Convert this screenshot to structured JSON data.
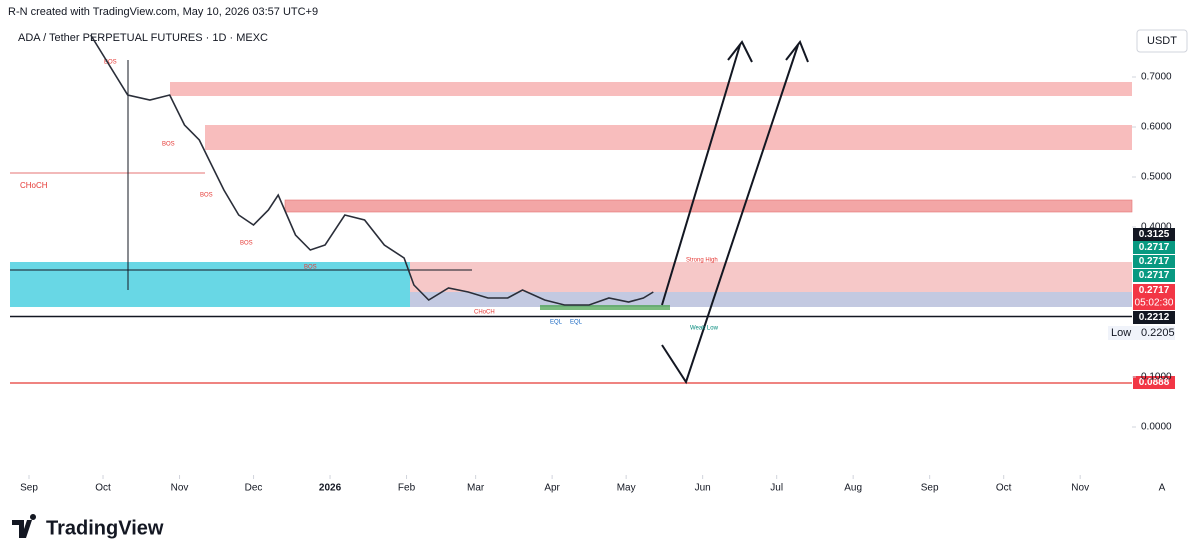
{
  "header": {
    "credit": "R-N created with TradingView.com, May 10, 2026 03:57 UTC+9",
    "brand": "TradingView"
  },
  "chart_data": {
    "type": "line",
    "title": "ADA / Tether PERPETUAL FUTURES · 1D · MEXC",
    "y_axis_label": "USDT",
    "scale_mode": "A",
    "color": "#2a2e39",
    "x": [
      25,
      40,
      49,
      57,
      63,
      69,
      73,
      79,
      85,
      91,
      97,
      101,
      108,
      114,
      120,
      128,
      136,
      144,
      152,
      156,
      162,
      170,
      178,
      186,
      194,
      200,
      209,
      217,
      227,
      235,
      243,
      249,
      253
    ],
    "values": [
      0.784,
      0.664,
      0.654,
      0.664,
      0.604,
      0.574,
      0.534,
      0.474,
      0.424,
      0.404,
      0.434,
      0.464,
      0.384,
      0.354,
      0.364,
      0.424,
      0.414,
      0.364,
      0.338,
      0.284,
      0.254,
      0.278,
      0.27,
      0.258,
      0.258,
      0.274,
      0.254,
      0.244,
      0.244,
      0.258,
      0.25,
      0.258,
      0.27
    ],
    "xlim": [
      -7.7,
      447
    ],
    "xticks": [
      {
        "value": 0,
        "label": "Sep"
      },
      {
        "value": 30,
        "label": "Oct"
      },
      {
        "value": 61,
        "label": "Nov"
      },
      {
        "value": 91,
        "label": "Dec"
      },
      {
        "value": 122,
        "label": "2026"
      },
      {
        "value": 153,
        "label": "Feb"
      },
      {
        "value": 181,
        "label": "Mar"
      },
      {
        "value": 212,
        "label": "Apr"
      },
      {
        "value": 242,
        "label": "May"
      },
      {
        "value": 273,
        "label": "Jun"
      },
      {
        "value": 303,
        "label": "Jul"
      },
      {
        "value": 334,
        "label": "Aug"
      },
      {
        "value": 365,
        "label": "Sep"
      },
      {
        "value": 395,
        "label": "Oct"
      },
      {
        "value": 426,
        "label": "Nov"
      }
    ],
    "ylim": [
      -0.096,
      0.794
    ],
    "yticks": [
      {
        "value": 0,
        "label": "0.0000"
      },
      {
        "value": 0.1,
        "label": "0.1000"
      },
      {
        "value": 0.4,
        "label": "0.4000"
      },
      {
        "value": 0.5,
        "label": "0.5000"
      },
      {
        "value": 0.6,
        "label": "0.6000"
      },
      {
        "value": 0.7,
        "label": "0.7000"
      }
    ],
    "price_labels": [
      0.3125,
      0.2717,
      0.2717,
      0.2717,
      0.2717,
      "05:02:30",
      0.2212,
      0.2205,
      0.0888
    ],
    "low_label": "Low",
    "annotations": [
      "CHoCH",
      "BOS",
      "BOS",
      "BOS",
      "BOS",
      "BOS",
      "CHoCH",
      "EQL",
      "EQL",
      "Weak Low",
      "Strong High"
    ]
  }
}
